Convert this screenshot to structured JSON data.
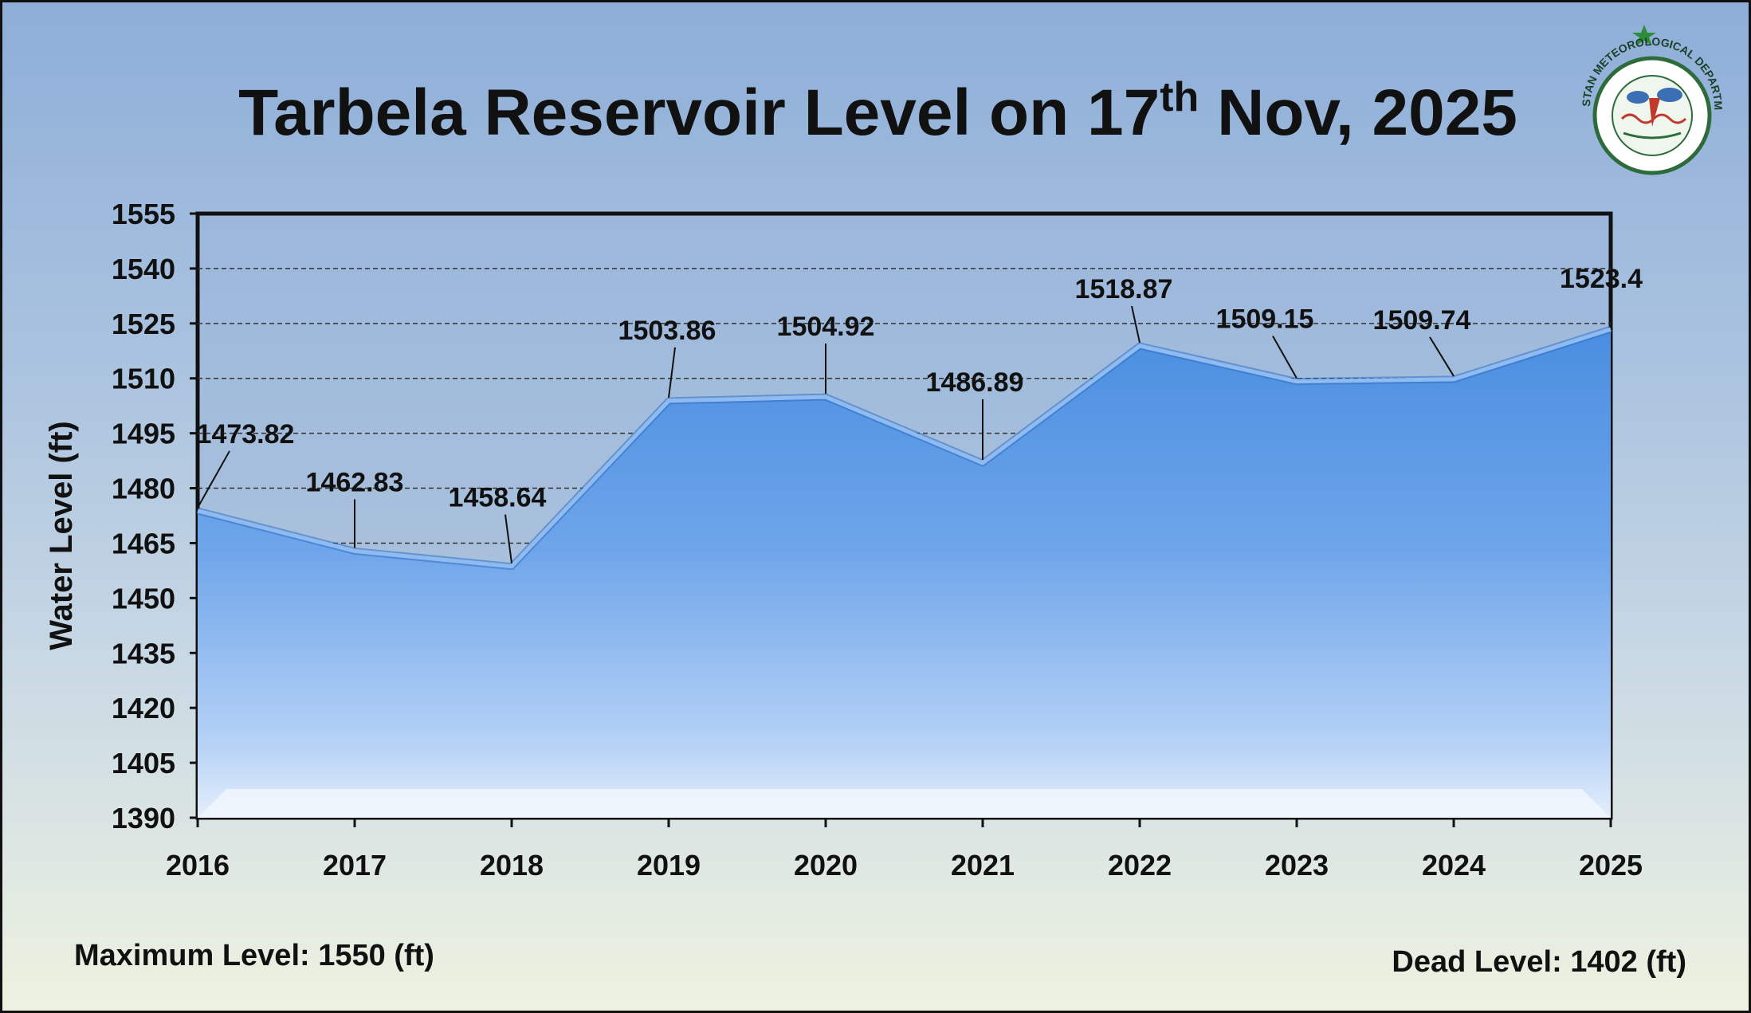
{
  "title": {
    "main": "Tarbela Reservoir Level on 17",
    "superscript": "th",
    "tail": " Nov, 2025"
  },
  "logo": {
    "icon": "pakistan-meteorological-department-seal-icon",
    "text": "PAKISTAN METEOROLOGICAL DEPARTMENT"
  },
  "footer": {
    "max_level": "Maximum Level: 1550 (ft)",
    "dead_level": "Dead Level: 1402 (ft)"
  },
  "colors": {
    "background_top": "#8eaed8",
    "background_bottom": "#eef2e0",
    "area_fill_top": "#4a8ee0",
    "area_fill_bottom": "#d8e8fb",
    "line": "#6fa3e6",
    "grid": "#333333",
    "text": "#111111"
  },
  "chart_data": {
    "type": "area",
    "title": "Tarbela Reservoir Level on 17th Nov, 2025",
    "xlabel": "",
    "ylabel": "Water Level (ft)",
    "categories": [
      "2016",
      "2017",
      "2018",
      "2019",
      "2020",
      "2021",
      "2022",
      "2023",
      "2024",
      "2025"
    ],
    "series": [
      {
        "values": [
          1473.82,
          1462.83,
          1458.64,
          1503.86,
          1504.92,
          1486.89,
          1518.87,
          1509.15,
          1509.74,
          1523.4
        ],
        "labels": [
          "1473.82",
          "1462.83",
          "1458.64",
          "1503.86",
          "1504.92",
          "1486.89",
          "1518.87",
          "1509.15",
          "1509.74",
          "1523.4"
        ]
      }
    ],
    "ylim": [
      1390,
      1555
    ],
    "yticks": [
      "1390",
      "1405",
      "1420",
      "1435",
      "1450",
      "1465",
      "1480",
      "1495",
      "1510",
      "1525",
      "1540",
      "1555"
    ],
    "grid": "horizontal dashed",
    "legend": "none"
  }
}
